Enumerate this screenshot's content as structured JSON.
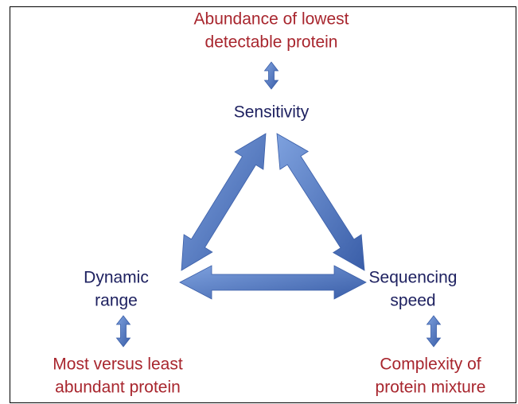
{
  "nodes": [
    {
      "name": [
        "Sensitivity"
      ],
      "detail": [
        "Abundance of lowest",
        "detectable protein"
      ]
    },
    {
      "name": [
        "Dynamic",
        "range"
      ],
      "detail": [
        "Most versus least",
        "abundant protein"
      ]
    },
    {
      "name": [
        "Sequencing",
        "speed"
      ],
      "detail": [
        "Complexity of",
        "protein mixture"
      ]
    }
  ]
}
